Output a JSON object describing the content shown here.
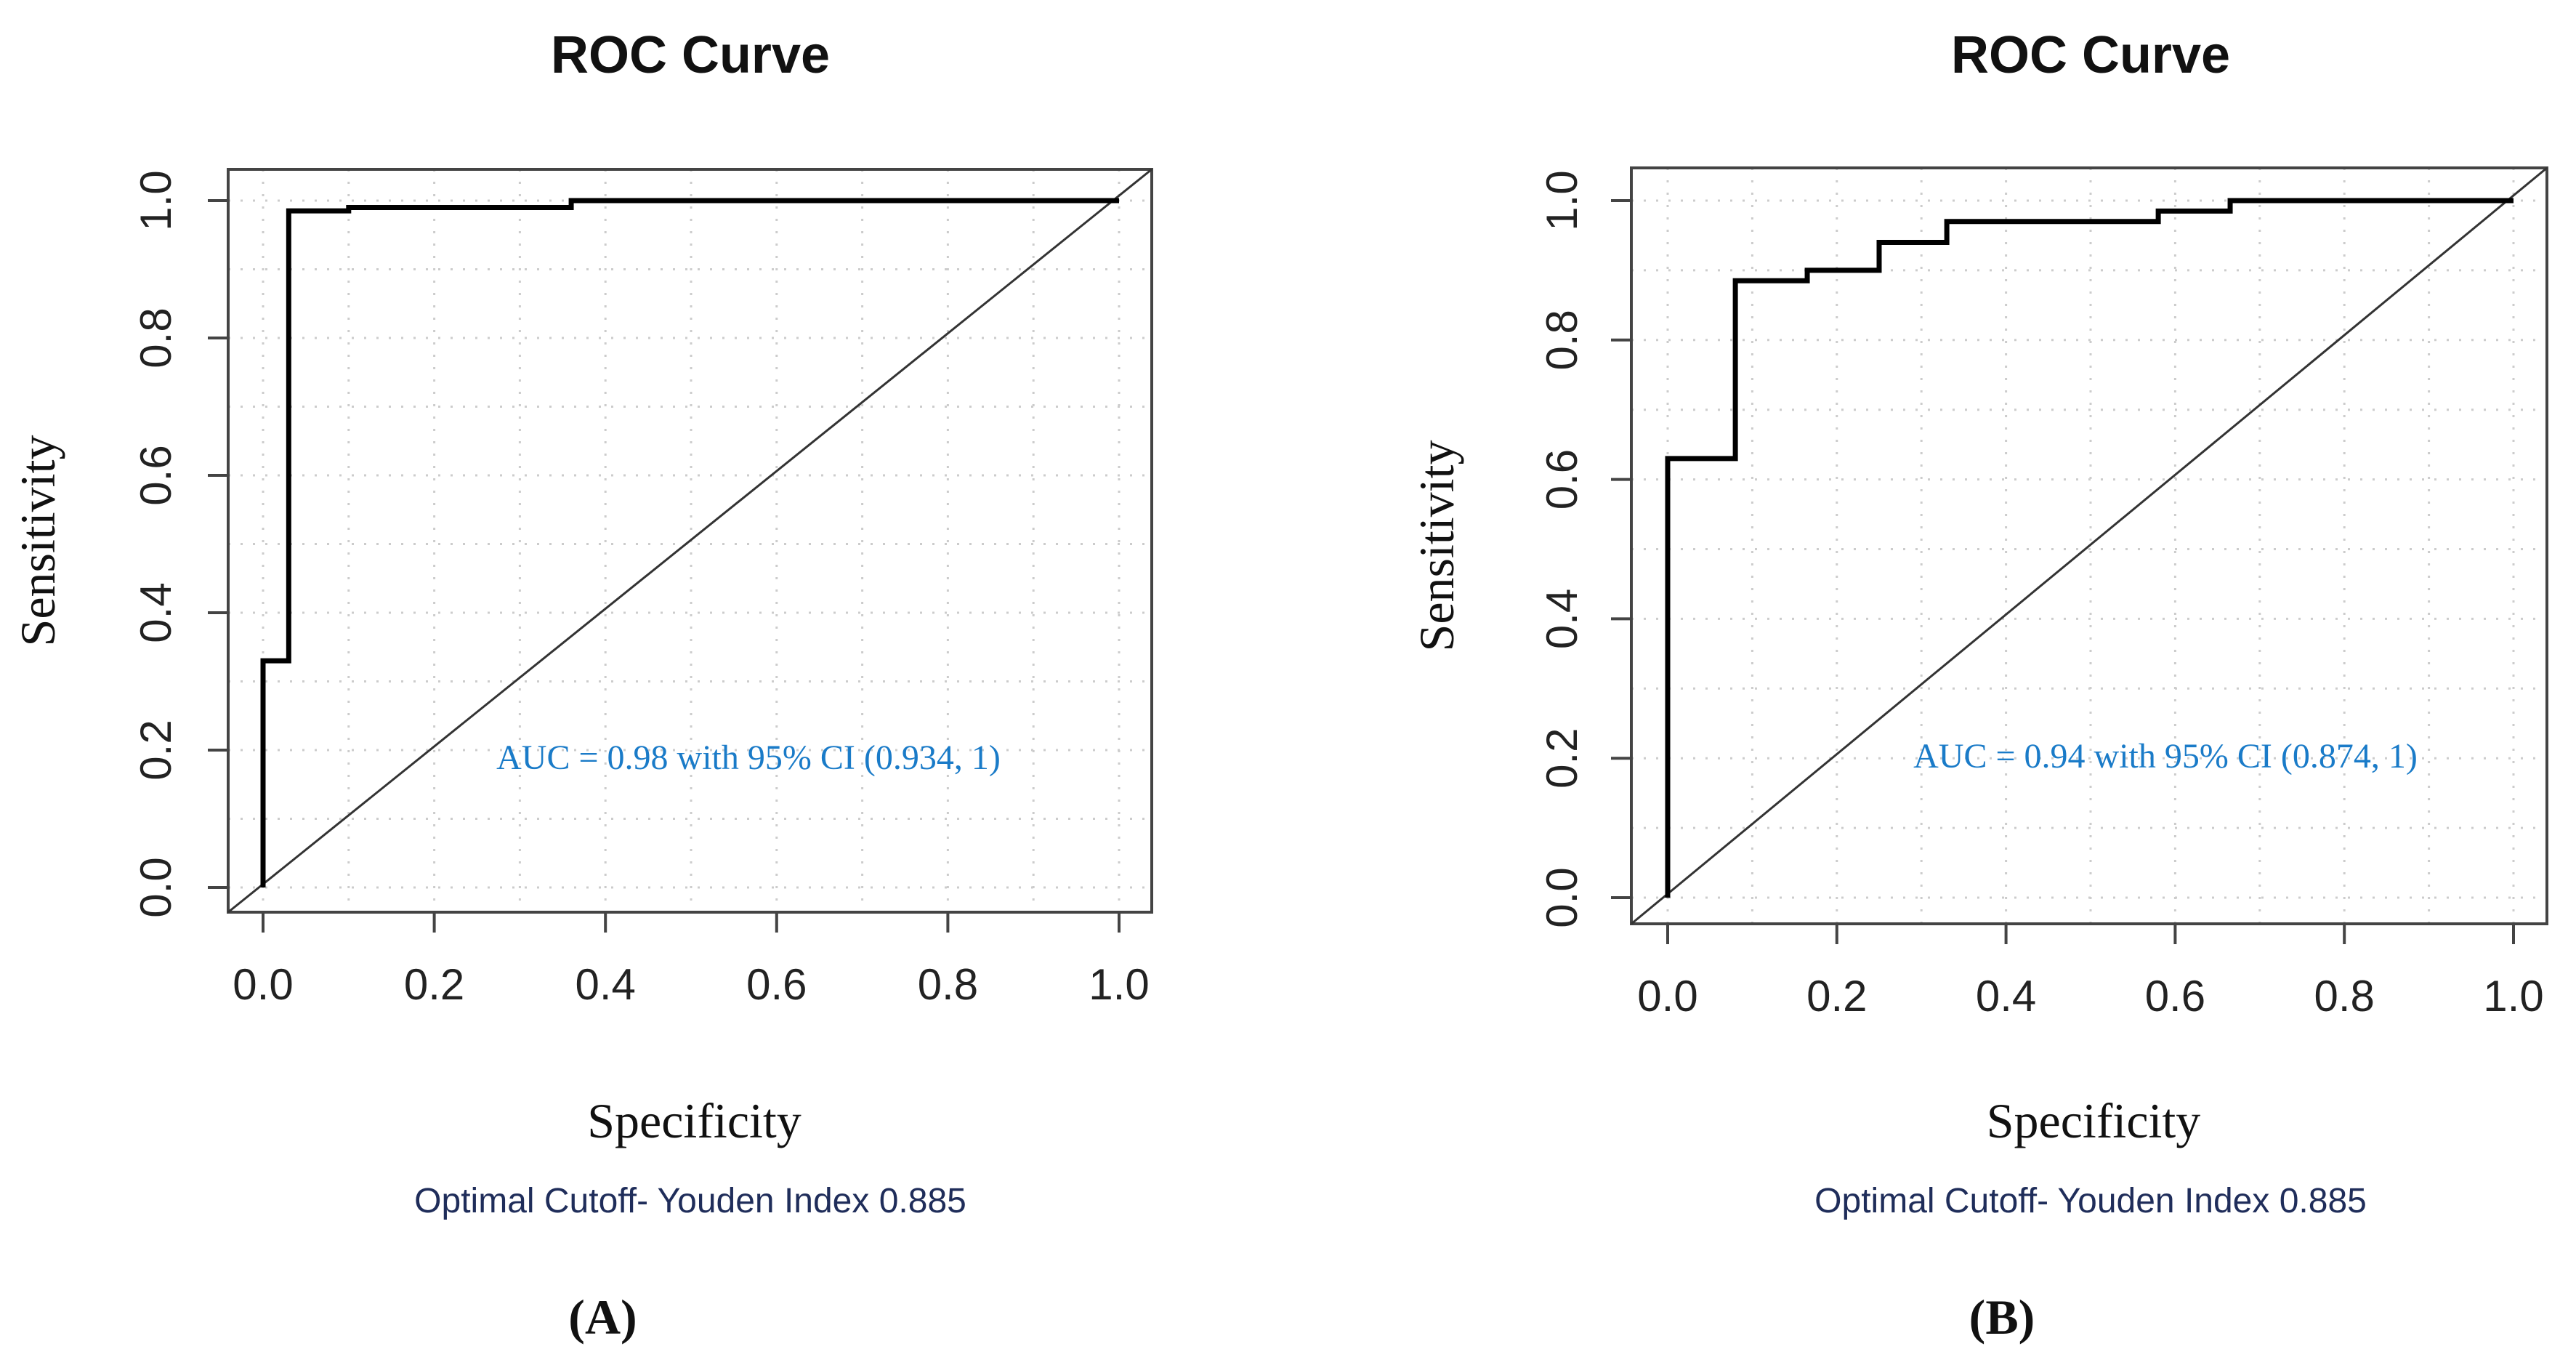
{
  "chart_data": [
    {
      "type": "line",
      "panel_label": "(A)",
      "title": "ROC Curve",
      "xlabel": "Specificity",
      "ylabel": "Sensitivity",
      "xlim": [
        0,
        1
      ],
      "ylim": [
        0,
        1
      ],
      "xticks": [
        "0.0",
        "0.2",
        "0.4",
        "0.6",
        "0.8",
        "1.0"
      ],
      "yticks": [
        "0.0",
        "0.2",
        "0.4",
        "0.6",
        "0.8",
        "1.0"
      ],
      "grid": true,
      "annotation": "AUC = 0.98 with 95% CI (0.934, 1)",
      "footnote": "Optimal Cutoff- Youden Index 0.885",
      "series": [
        {
          "name": "ROC",
          "x": [
            0,
            0,
            0.03,
            0.03,
            0.1,
            0.1,
            0.36,
            0.36,
            1
          ],
          "y": [
            0,
            0.33,
            0.33,
            0.985,
            0.985,
            0.99,
            0.99,
            1,
            1
          ]
        },
        {
          "name": "reference",
          "x": [
            0,
            1
          ],
          "y": [
            0,
            1
          ]
        }
      ]
    },
    {
      "type": "line",
      "panel_label": "(B)",
      "title": "ROC Curve",
      "xlabel": "Specificity",
      "ylabel": "Sensitivity",
      "xlim": [
        0,
        1
      ],
      "ylim": [
        0,
        1
      ],
      "xticks": [
        "0.0",
        "0.2",
        "0.4",
        "0.6",
        "0.8",
        "1.0"
      ],
      "yticks": [
        "0.0",
        "0.2",
        "0.4",
        "0.6",
        "0.8",
        "1.0"
      ],
      "grid": true,
      "annotation": "AUC = 0.94 with 95% CI (0.874, 1)",
      "footnote": "Optimal Cutoff- Youden Index 0.885",
      "series": [
        {
          "name": "ROC",
          "x": [
            0,
            0,
            0.08,
            0.08,
            0.165,
            0.165,
            0.25,
            0.25,
            0.33,
            0.33,
            0.58,
            0.58,
            0.665,
            0.665,
            1
          ],
          "y": [
            0,
            0.63,
            0.63,
            0.885,
            0.885,
            0.9,
            0.9,
            0.94,
            0.94,
            0.97,
            0.97,
            0.985,
            0.985,
            1,
            1
          ]
        },
        {
          "name": "reference",
          "x": [
            0,
            1
          ],
          "y": [
            0,
            1
          ]
        }
      ]
    }
  ],
  "colors": {
    "annotation": "#1a7bc8",
    "footnote": "#1f2d5a",
    "curve": "#000000",
    "grid": "#cccccc"
  }
}
